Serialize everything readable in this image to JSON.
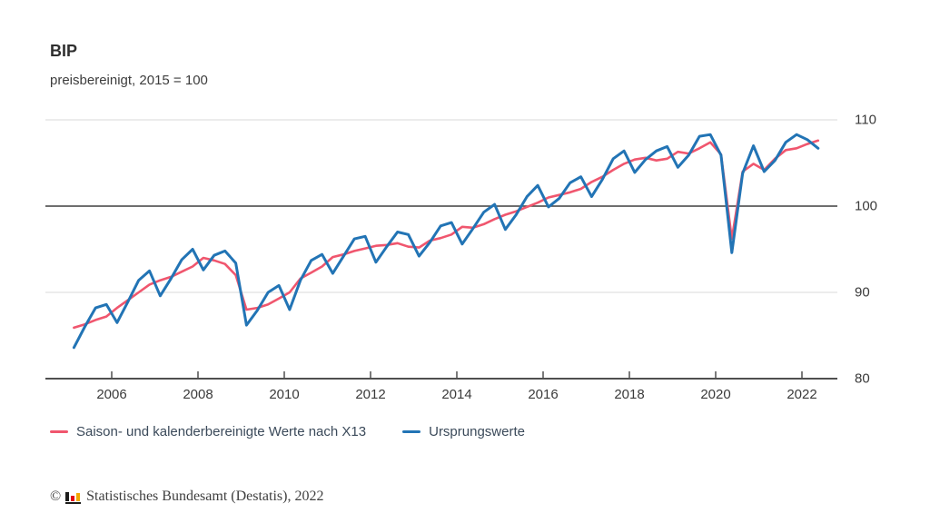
{
  "header": {
    "title": "BIP",
    "subtitle": "preisbereinigt, 2015 = 100"
  },
  "chart_data": {
    "type": "line",
    "title": "BIP",
    "subtitle": "preisbereinigt, 2015 = 100",
    "frequency": "quarterly",
    "x_start": "2005-Q1",
    "x_end": "2022-Q2",
    "x_tick_labels": [
      "2006",
      "2008",
      "2010",
      "2012",
      "2014",
      "2016",
      "2018",
      "2020",
      "2022"
    ],
    "y_ticks": [
      110,
      100,
      90,
      80
    ],
    "ylim": [
      80,
      110
    ],
    "reference_line_y": 100,
    "grid": "horizontal-only",
    "legend_position": "bottom-left",
    "series": [
      {
        "name": "Saison- und kalenderbereinigte Werte nach X13",
        "color": "#f0566e",
        "values": [
          85.9,
          86.3,
          86.8,
          87.2,
          88.2,
          89.1,
          90.0,
          90.9,
          91.4,
          91.8,
          92.4,
          93.0,
          94.0,
          93.7,
          93.3,
          92.0,
          88.0,
          88.2,
          88.6,
          89.3,
          90.0,
          91.6,
          92.3,
          93.0,
          94.1,
          94.4,
          94.8,
          95.1,
          95.4,
          95.5,
          95.7,
          95.3,
          95.2,
          96.0,
          96.3,
          96.7,
          97.6,
          97.5,
          97.9,
          98.5,
          99.0,
          99.4,
          99.9,
          100.4,
          101.0,
          101.3,
          101.6,
          102.0,
          102.8,
          103.4,
          104.2,
          104.9,
          105.4,
          105.6,
          105.3,
          105.5,
          106.3,
          106.1,
          106.7,
          107.4,
          106.0,
          96.2,
          104.0,
          104.9,
          104.2,
          105.5,
          106.5,
          106.7,
          107.2,
          107.6
        ]
      },
      {
        "name": "Ursprungswerte",
        "color": "#2274b5",
        "values": [
          83.6,
          86.0,
          88.2,
          88.6,
          86.5,
          88.9,
          91.4,
          92.5,
          89.6,
          91.6,
          93.8,
          95.0,
          92.6,
          94.3,
          94.8,
          93.4,
          86.2,
          87.9,
          90.0,
          90.8,
          88.0,
          91.4,
          93.7,
          94.4,
          92.2,
          94.2,
          96.2,
          96.5,
          93.5,
          95.3,
          97.0,
          96.7,
          94.2,
          95.8,
          97.7,
          98.1,
          95.6,
          97.4,
          99.3,
          100.2,
          97.3,
          99.0,
          101.1,
          102.4,
          99.9,
          100.9,
          102.7,
          103.4,
          101.1,
          103.1,
          105.5,
          106.4,
          103.9,
          105.4,
          106.4,
          106.9,
          104.5,
          105.9,
          108.1,
          108.3,
          105.9,
          94.6,
          103.8,
          107.0,
          104.0,
          105.3,
          107.4,
          108.3,
          107.7,
          106.7
        ]
      }
    ],
    "axis_colors": {
      "gridline": "#d9d9d9",
      "reference_line": "#3f3f3f",
      "axis_line": "#4f4f4f"
    }
  },
  "footer": {
    "copyright_symbol": "©",
    "logo": "destatis-bars-icon",
    "logo_colors": {
      "black": "#1d1d1b",
      "red": "#e30613",
      "gold": "#f2a800"
    },
    "text": "Statistisches Bundesamt (Destatis), 2022"
  }
}
